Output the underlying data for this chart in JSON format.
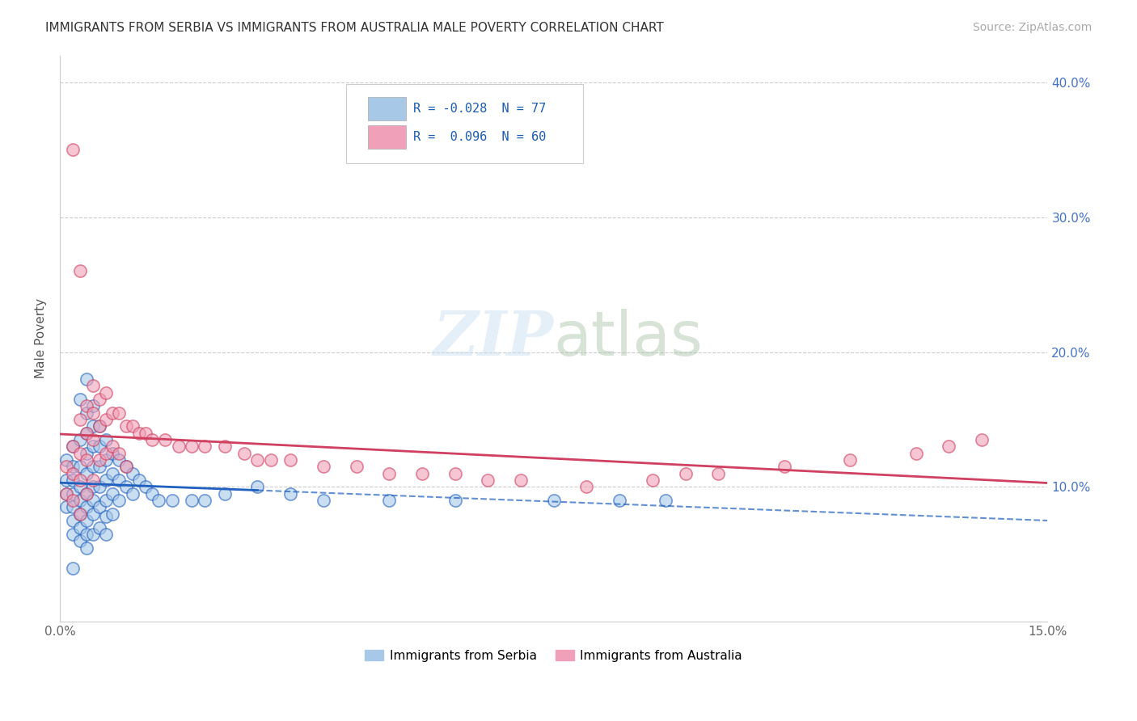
{
  "title": "IMMIGRANTS FROM SERBIA VS IMMIGRANTS FROM AUSTRALIA MALE POVERTY CORRELATION CHART",
  "source": "Source: ZipAtlas.com",
  "ylabel": "Male Poverty",
  "xlim": [
    0.0,
    0.15
  ],
  "ylim": [
    0.0,
    0.42
  ],
  "serbia_R": -0.028,
  "serbia_N": 77,
  "australia_R": 0.096,
  "australia_N": 60,
  "serbia_color": "#a8c8e8",
  "australia_color": "#f0a0b8",
  "serbia_line_color": "#2060c0",
  "australia_line_color": "#d04060",
  "legend_serbia_label": "Immigrants from Serbia",
  "legend_australia_label": "Immigrants from Australia",
  "serbia_scatter_x": [
    0.001,
    0.001,
    0.001,
    0.001,
    0.002,
    0.002,
    0.002,
    0.002,
    0.002,
    0.002,
    0.002,
    0.003,
    0.003,
    0.003,
    0.003,
    0.003,
    0.003,
    0.003,
    0.003,
    0.004,
    0.004,
    0.004,
    0.004,
    0.004,
    0.004,
    0.004,
    0.004,
    0.004,
    0.004,
    0.005,
    0.005,
    0.005,
    0.005,
    0.005,
    0.005,
    0.005,
    0.005,
    0.006,
    0.006,
    0.006,
    0.006,
    0.006,
    0.006,
    0.007,
    0.007,
    0.007,
    0.007,
    0.007,
    0.007,
    0.008,
    0.008,
    0.008,
    0.008,
    0.009,
    0.009,
    0.009,
    0.01,
    0.01,
    0.011,
    0.011,
    0.012,
    0.013,
    0.014,
    0.015,
    0.017,
    0.02,
    0.022,
    0.025,
    0.03,
    0.035,
    0.04,
    0.05,
    0.06,
    0.075,
    0.085,
    0.092,
    0.002
  ],
  "serbia_scatter_y": [
    0.12,
    0.105,
    0.095,
    0.085,
    0.13,
    0.115,
    0.105,
    0.095,
    0.085,
    0.075,
    0.065,
    0.165,
    0.135,
    0.115,
    0.1,
    0.09,
    0.08,
    0.07,
    0.06,
    0.18,
    0.155,
    0.14,
    0.125,
    0.11,
    0.095,
    0.085,
    0.075,
    0.065,
    0.055,
    0.16,
    0.145,
    0.13,
    0.115,
    0.1,
    0.09,
    0.08,
    0.065,
    0.145,
    0.13,
    0.115,
    0.1,
    0.085,
    0.07,
    0.135,
    0.12,
    0.105,
    0.09,
    0.078,
    0.065,
    0.125,
    0.11,
    0.095,
    0.08,
    0.12,
    0.105,
    0.09,
    0.115,
    0.1,
    0.11,
    0.095,
    0.105,
    0.1,
    0.095,
    0.09,
    0.09,
    0.09,
    0.09,
    0.095,
    0.1,
    0.095,
    0.09,
    0.09,
    0.09,
    0.09,
    0.09,
    0.09,
    0.04
  ],
  "australia_scatter_x": [
    0.001,
    0.001,
    0.002,
    0.002,
    0.002,
    0.003,
    0.003,
    0.003,
    0.003,
    0.004,
    0.004,
    0.004,
    0.004,
    0.005,
    0.005,
    0.005,
    0.005,
    0.006,
    0.006,
    0.006,
    0.007,
    0.007,
    0.007,
    0.008,
    0.008,
    0.009,
    0.009,
    0.01,
    0.01,
    0.011,
    0.012,
    0.013,
    0.014,
    0.016,
    0.018,
    0.02,
    0.022,
    0.025,
    0.028,
    0.03,
    0.032,
    0.035,
    0.04,
    0.045,
    0.05,
    0.055,
    0.06,
    0.065,
    0.07,
    0.08,
    0.09,
    0.095,
    0.1,
    0.11,
    0.12,
    0.13,
    0.135,
    0.14,
    0.002,
    0.003
  ],
  "australia_scatter_y": [
    0.115,
    0.095,
    0.13,
    0.11,
    0.09,
    0.15,
    0.125,
    0.105,
    0.08,
    0.16,
    0.14,
    0.12,
    0.095,
    0.175,
    0.155,
    0.135,
    0.105,
    0.165,
    0.145,
    0.12,
    0.17,
    0.15,
    0.125,
    0.155,
    0.13,
    0.155,
    0.125,
    0.145,
    0.115,
    0.145,
    0.14,
    0.14,
    0.135,
    0.135,
    0.13,
    0.13,
    0.13,
    0.13,
    0.125,
    0.12,
    0.12,
    0.12,
    0.115,
    0.115,
    0.11,
    0.11,
    0.11,
    0.105,
    0.105,
    0.1,
    0.105,
    0.11,
    0.11,
    0.115,
    0.12,
    0.125,
    0.13,
    0.135,
    0.35,
    0.26
  ]
}
